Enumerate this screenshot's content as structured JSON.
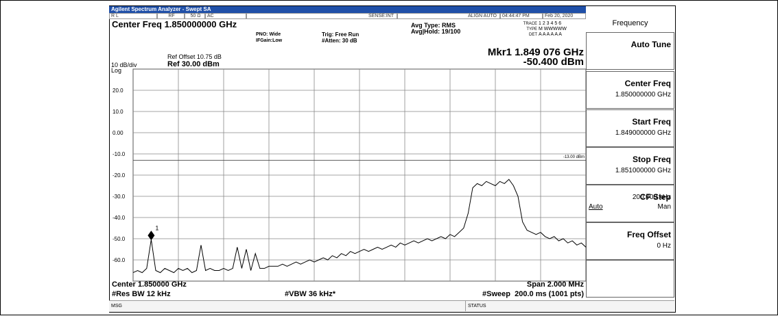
{
  "title_bar": "Agilent Spectrum Analyzer - Swept SA",
  "status_bar": {
    "mode": "R L",
    "rf": "RF",
    "impedance": "50 Ω",
    "coupling": "AC",
    "sense": "SENSE:INT",
    "align": "ALIGN AUTO",
    "time": "04:44:47 PM",
    "date": "Feb 20, 2020"
  },
  "settings": {
    "center_freq": "Center Freq 1.850000000 GHz",
    "pno": "PNO: Wide",
    "ifgain": "IFGain:Low",
    "trig": "Trig: Free Run",
    "atten": "#Atten: 30 dB",
    "avg_type": "Avg Type: RMS",
    "avg_hold": "Avg|Hold: 19/100",
    "trace_label": "TRACE",
    "trace_nums": "1 2 3 4 5 6",
    "type_label": "TYPE",
    "type_val": "M WWWWW",
    "det_label": "DET",
    "det_val": "A A A A A A"
  },
  "display": {
    "ref_offset": "Ref Offset 10.75 dB",
    "ref_level": "Ref 30.00 dBm",
    "scale": "10 dB/div",
    "scale_type": "Log",
    "marker_freq": "Mkr1 1.849 076 GHz",
    "marker_level": "-50.400 dBm"
  },
  "chart_data": {
    "type": "line",
    "values": [
      -66,
      -65,
      -66,
      -64,
      -50.4,
      -65,
      -66,
      -64,
      -65,
      -66,
      -64,
      -65,
      -64,
      -66,
      -65,
      -53,
      -65,
      -64,
      -65,
      -65,
      -64,
      -65,
      -64,
      -54,
      -64,
      -55,
      -65,
      -57,
      -64,
      -64,
      -63,
      -63,
      -63,
      -62,
      -63,
      -62,
      -61,
      -62,
      -61,
      -60,
      -61,
      -60,
      -59,
      -60,
      -58,
      -59,
      -57,
      -58,
      -56,
      -57,
      -56,
      -55,
      -56,
      -55,
      -54,
      -55,
      -54,
      -53,
      -54,
      -52,
      -53,
      -52,
      -51,
      -52,
      -51,
      -50,
      -51,
      -50,
      -49,
      -50,
      -48,
      -49,
      -47,
      -45,
      -38,
      -26,
      -24,
      -25,
      -23,
      -24,
      -25,
      -23,
      -24,
      -22,
      -25,
      -30,
      -42,
      -46,
      -47,
      -48,
      -47,
      -49,
      -50,
      -49,
      -51,
      -50,
      -52,
      -51,
      -53,
      -52,
      -54
    ],
    "color": "#000000",
    "ylim": [
      -70,
      30
    ],
    "yticks": [
      {
        "value": 20,
        "label": "20.0"
      },
      {
        "value": 10,
        "label": "10.0"
      },
      {
        "value": 0,
        "label": "0.00"
      },
      {
        "value": -10,
        "label": "-10.0"
      },
      {
        "value": -20,
        "label": "-20.0"
      },
      {
        "value": -30,
        "label": "-30.0"
      },
      {
        "value": -40,
        "label": "-40.0"
      },
      {
        "value": -50,
        "label": "-50.0"
      },
      {
        "value": -60,
        "label": "-60.0"
      }
    ],
    "grid": true,
    "display_line": {
      "value": -13,
      "label": "-13.00 dBm"
    },
    "marker_label": "1"
  },
  "footer": {
    "center": "Center 1.850000 GHz",
    "span": "Span 2.000 MHz",
    "res_bw": "#Res BW 12 kHz",
    "vbw": "#VBW 36 kHz*",
    "sweep": "#Sweep  200.0 ms (1001 pts)",
    "msg": "MSG",
    "status": "STATUS"
  },
  "softkeys": {
    "title": "Frequency",
    "keys": [
      {
        "label": "Auto Tune"
      },
      {
        "label": "Center Freq",
        "value": "1.850000000 GHz"
      },
      {
        "label": "Start Freq",
        "value": "1.849000000 GHz"
      },
      {
        "label": "Stop Freq",
        "value": "1.851000000 GHz"
      },
      {
        "label": "CF Step",
        "value": "200.000 kHz",
        "left": "Auto",
        "right": "Man"
      },
      {
        "label": "Freq Offset",
        "value": "0 Hz"
      }
    ]
  }
}
